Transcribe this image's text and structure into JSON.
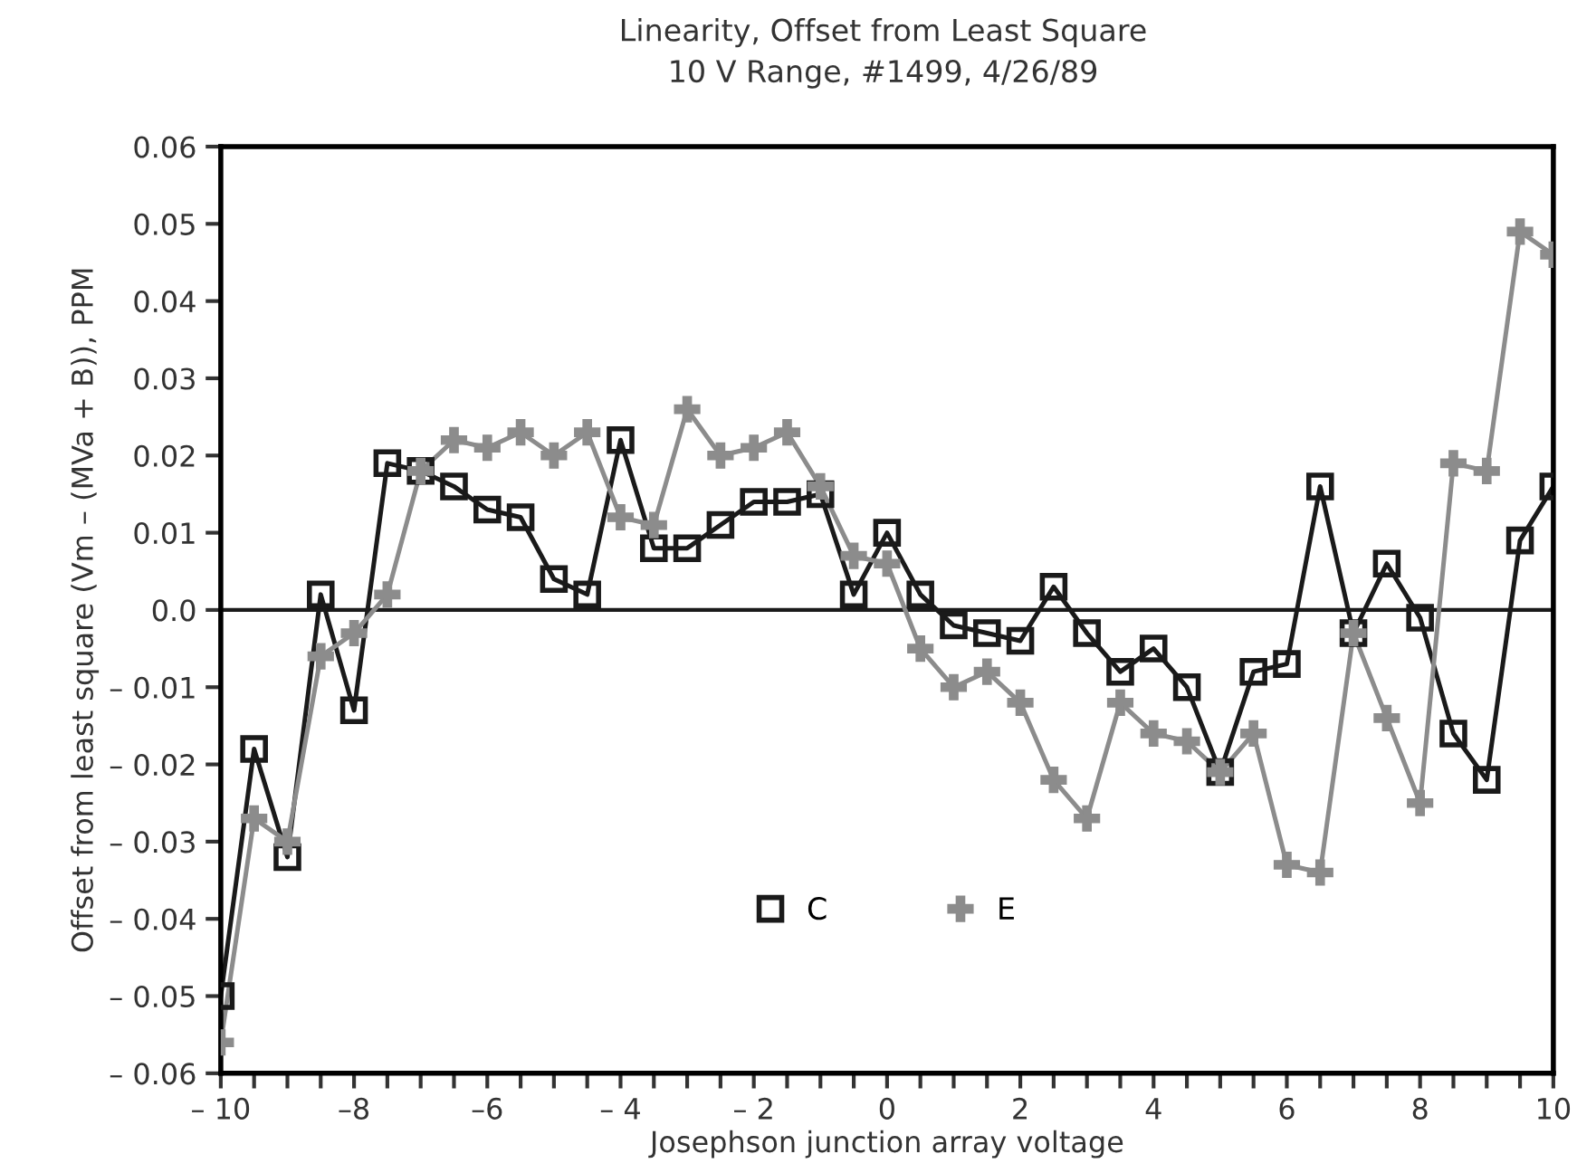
{
  "chart_data": {
    "type": "line",
    "title": "Linearity, Offset from Least Square",
    "subtitle": "10 V Range, #1499, 4/26/89",
    "xlabel": "Josephson junction array voltage",
    "ylabel": "Offset from least square (Vm – (MVa + B)), PPM",
    "x": [
      -10,
      -9.5,
      -9,
      -8.5,
      -8,
      -7.5,
      -7,
      -6.5,
      -6,
      -5.5,
      -5,
      -4.5,
      -4,
      -3.5,
      -3,
      -2.5,
      -2,
      -1.5,
      -1,
      -0.5,
      0,
      0.5,
      1,
      1.5,
      2,
      2.5,
      3,
      3.5,
      4,
      4.5,
      5,
      5.5,
      6,
      6.5,
      7,
      7.5,
      8,
      8.5,
      9,
      9.5,
      10
    ],
    "series": [
      {
        "name": "C",
        "color": "#1a1a1a",
        "marker": "square",
        "values": [
          -0.05,
          -0.018,
          -0.032,
          0.002,
          -0.013,
          0.019,
          0.018,
          0.016,
          0.013,
          0.012,
          0.004,
          0.002,
          0.022,
          0.008,
          0.008,
          0.011,
          0.014,
          0.014,
          0.015,
          0.002,
          0.01,
          0.002,
          -0.002,
          -0.003,
          -0.004,
          0.003,
          -0.003,
          -0.008,
          -0.005,
          -0.01,
          -0.021,
          -0.008,
          -0.007,
          0.016,
          -0.003,
          0.006,
          -0.001,
          -0.016,
          -0.022,
          0.009,
          0.016
        ]
      },
      {
        "name": "E",
        "color": "#8c8c8c",
        "marker": "cross",
        "values": [
          -0.056,
          -0.027,
          -0.03,
          -0.006,
          -0.003,
          0.002,
          0.018,
          0.022,
          0.021,
          0.023,
          0.02,
          0.023,
          0.012,
          0.011,
          0.026,
          0.02,
          0.021,
          0.023,
          0.016,
          0.007,
          0.006,
          -0.005,
          -0.01,
          -0.008,
          -0.012,
          -0.022,
          -0.027,
          -0.012,
          -0.016,
          -0.017,
          -0.021,
          -0.016,
          -0.033,
          -0.034,
          -0.003,
          -0.014,
          -0.025,
          0.019,
          0.018,
          0.049,
          0.046
        ]
      }
    ],
    "xlim": [
      -10,
      10
    ],
    "xticks": [
      {
        "value": -10,
        "label": "– 10"
      },
      {
        "value": -9.5,
        "label": null
      },
      {
        "value": -9,
        "label": null
      },
      {
        "value": -8.5,
        "label": null
      },
      {
        "value": -8,
        "label": "–8"
      },
      {
        "value": -7.5,
        "label": null
      },
      {
        "value": -7,
        "label": null
      },
      {
        "value": -6.5,
        "label": null
      },
      {
        "value": -6,
        "label": "–6"
      },
      {
        "value": -5.5,
        "label": null
      },
      {
        "value": -5,
        "label": null
      },
      {
        "value": -4.5,
        "label": null
      },
      {
        "value": -4,
        "label": "– 4"
      },
      {
        "value": -3.5,
        "label": null
      },
      {
        "value": -3,
        "label": null
      },
      {
        "value": -2.5,
        "label": null
      },
      {
        "value": -2,
        "label": "– 2"
      },
      {
        "value": -1.5,
        "label": null
      },
      {
        "value": -1,
        "label": null
      },
      {
        "value": -0.5,
        "label": null
      },
      0,
      {
        "value": 0.5,
        "label": null
      },
      {
        "value": 1,
        "label": null
      },
      {
        "value": 1.5,
        "label": null
      },
      2,
      {
        "value": 2.5,
        "label": null
      },
      {
        "value": 3,
        "label": null
      },
      {
        "value": 3.5,
        "label": null
      },
      4,
      {
        "value": 4.5,
        "label": null
      },
      {
        "value": 5,
        "label": null
      },
      {
        "value": 5.5,
        "label": null
      },
      6,
      {
        "value": 6.5,
        "label": null
      },
      {
        "value": 7,
        "label": null
      },
      {
        "value": 7.5,
        "label": null
      },
      8,
      {
        "value": 8.5,
        "label": null
      },
      {
        "value": 9,
        "label": null
      },
      {
        "value": 9.5,
        "label": null
      },
      10
    ],
    "ylim": [
      -0.06,
      0.06
    ],
    "yticks": [
      {
        "value": -0.06,
        "label": "– 0.06"
      },
      {
        "value": -0.05,
        "label": "– 0.05"
      },
      {
        "value": -0.04,
        "label": "– 0.04"
      },
      {
        "value": -0.03,
        "label": "– 0.03"
      },
      {
        "value": -0.02,
        "label": "– 0.02"
      },
      {
        "value": -0.01,
        "label": "– 0.01"
      },
      {
        "value": 0,
        "label": "0.0"
      },
      {
        "value": 0.01,
        "label": "0.01"
      },
      {
        "value": 0.02,
        "label": "0.02"
      },
      {
        "value": 0.03,
        "label": "0.03"
      },
      {
        "value": 0.04,
        "label": "0.04"
      },
      {
        "value": 0.05,
        "label": "0.05"
      },
      {
        "value": 0.06,
        "label": "0.06"
      }
    ],
    "ref_lines": [
      {
        "axis": "y",
        "value": 0,
        "label": null,
        "color": "#1a1a1a"
      }
    ],
    "grid": false,
    "legend": "bottom",
    "line_style": "solid"
  }
}
